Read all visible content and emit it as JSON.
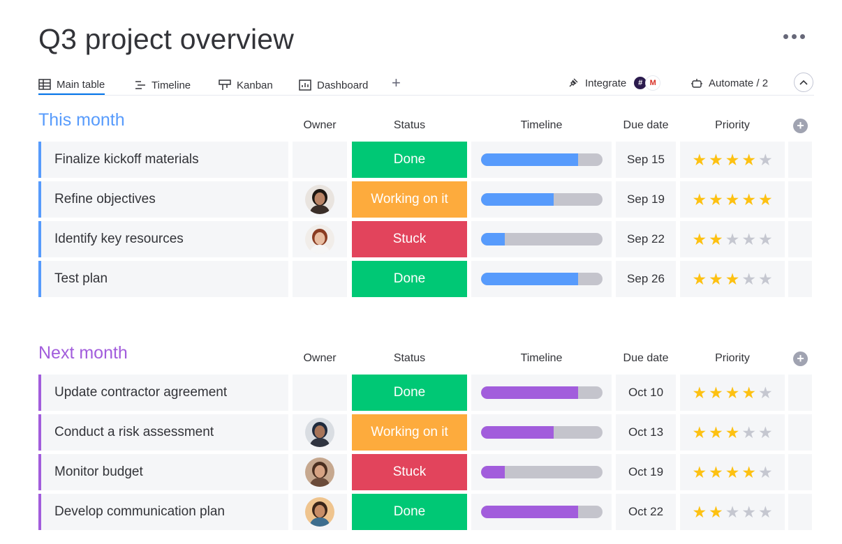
{
  "page": {
    "title": "Q3 project overview"
  },
  "tabs": [
    {
      "label": "Main table",
      "icon": "table-icon",
      "active": true
    },
    {
      "label": "Timeline",
      "icon": "timeline-icon",
      "active": false
    },
    {
      "label": "Kanban",
      "icon": "kanban-icon",
      "active": false
    },
    {
      "label": "Dashboard",
      "icon": "dashboard-icon",
      "active": false
    }
  ],
  "toolbar": {
    "integrate_label": "Integrate",
    "automate_label": "Automate / 2"
  },
  "columns": {
    "owner": "Owner",
    "status": "Status",
    "timeline": "Timeline",
    "due": "Due date",
    "priority": "Priority"
  },
  "colors": {
    "done": "#00c875",
    "working": "#fdab3d",
    "stuck": "#e2445c",
    "this_month": "#579bfc",
    "next_month": "#a25ddc"
  },
  "groups": [
    {
      "title": "This month",
      "color": "#579bfc",
      "rows": [
        {
          "name": "Finalize kickoff materials",
          "owner": null,
          "status": "Done",
          "status_key": "done",
          "timeline_progress": 0.8,
          "due": "Sep 15",
          "priority": 4
        },
        {
          "name": "Refine objectives",
          "owner": "avatar-woman-dark-hair",
          "status": "Working on it",
          "status_key": "working",
          "timeline_progress": 0.6,
          "due": "Sep 19",
          "priority": 5
        },
        {
          "name": "Identify key resources",
          "owner": "avatar-woman-red-hair",
          "status": "Stuck",
          "status_key": "stuck",
          "timeline_progress": 0.2,
          "due": "Sep 22",
          "priority": 2
        },
        {
          "name": "Test plan",
          "owner": null,
          "status": "Done",
          "status_key": "done",
          "timeline_progress": 0.8,
          "due": "Sep 26",
          "priority": 3
        }
      ]
    },
    {
      "title": "Next month",
      "color": "#a25ddc",
      "rows": [
        {
          "name": "Update contractor agreement",
          "owner": null,
          "status": "Done",
          "status_key": "done",
          "timeline_progress": 0.8,
          "due": "Oct 10",
          "priority": 4
        },
        {
          "name": "Conduct a risk assessment",
          "owner": "avatar-man-turban",
          "status": "Working on it",
          "status_key": "working",
          "timeline_progress": 0.6,
          "due": "Oct 13",
          "priority": 3
        },
        {
          "name": "Monitor budget",
          "owner": "avatar-woman-glasses",
          "status": "Stuck",
          "status_key": "stuck",
          "timeline_progress": 0.2,
          "due": "Oct 19",
          "priority": 4
        },
        {
          "name": "Develop communication plan",
          "owner": "avatar-man-beard",
          "status": "Done",
          "status_key": "done",
          "timeline_progress": 0.8,
          "due": "Oct 22",
          "priority": 2
        }
      ]
    }
  ]
}
